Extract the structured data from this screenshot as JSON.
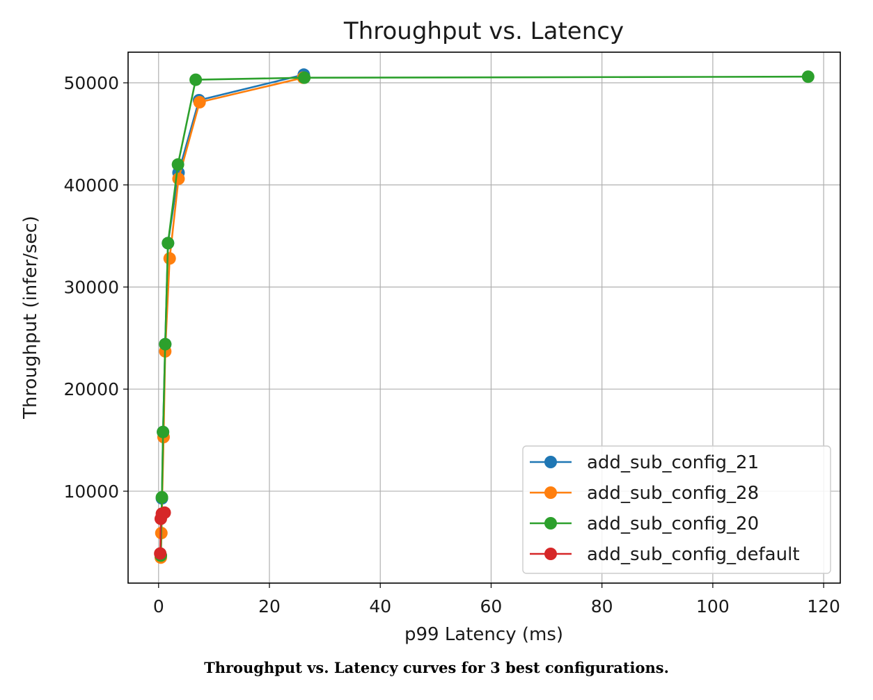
{
  "caption": "Throughput vs. Latency curves for 3 best configurations.",
  "chart_data": {
    "type": "line",
    "title": "Throughput vs. Latency",
    "xlabel": "p99 Latency (ms)",
    "ylabel": "Throughput (infer/sec)",
    "xlim": [
      -5.5,
      123
    ],
    "ylim": [
      1000,
      53000
    ],
    "xticks": [
      0,
      20,
      40,
      60,
      80,
      100,
      120
    ],
    "yticks": [
      10000,
      20000,
      30000,
      40000,
      50000
    ],
    "grid": true,
    "legend_position": "lower-right",
    "series": [
      {
        "name": "add_sub_config_21",
        "color": "#1f77b4",
        "points": [
          [
            0.4,
            3700
          ],
          [
            0.6,
            9300
          ],
          [
            0.8,
            15800
          ],
          [
            1.2,
            24400
          ],
          [
            1.7,
            34300
          ],
          [
            3.6,
            41200
          ],
          [
            7.3,
            48300
          ],
          [
            26.2,
            50800
          ]
        ]
      },
      {
        "name": "add_sub_config_28",
        "color": "#ff7f0e",
        "points": [
          [
            0.4,
            3500
          ],
          [
            0.5,
            5900
          ],
          [
            0.9,
            15300
          ],
          [
            1.2,
            23700
          ],
          [
            2.0,
            32800
          ],
          [
            3.6,
            40600
          ],
          [
            7.4,
            48100
          ],
          [
            26.1,
            50500
          ]
        ]
      },
      {
        "name": "add_sub_config_20",
        "color": "#2ca02c",
        "points": [
          [
            0.4,
            3700
          ],
          [
            0.6,
            9400
          ],
          [
            0.8,
            15800
          ],
          [
            1.2,
            24400
          ],
          [
            1.7,
            34300
          ],
          [
            3.5,
            42000
          ],
          [
            6.7,
            50300
          ],
          [
            26.3,
            50500
          ],
          [
            117.2,
            50600
          ]
        ]
      },
      {
        "name": "add_sub_config_default",
        "color": "#d62728",
        "points": [
          [
            0.3,
            3900
          ],
          [
            0.4,
            7300
          ],
          [
            0.6,
            7800
          ],
          [
            1.1,
            7900
          ]
        ]
      }
    ]
  }
}
